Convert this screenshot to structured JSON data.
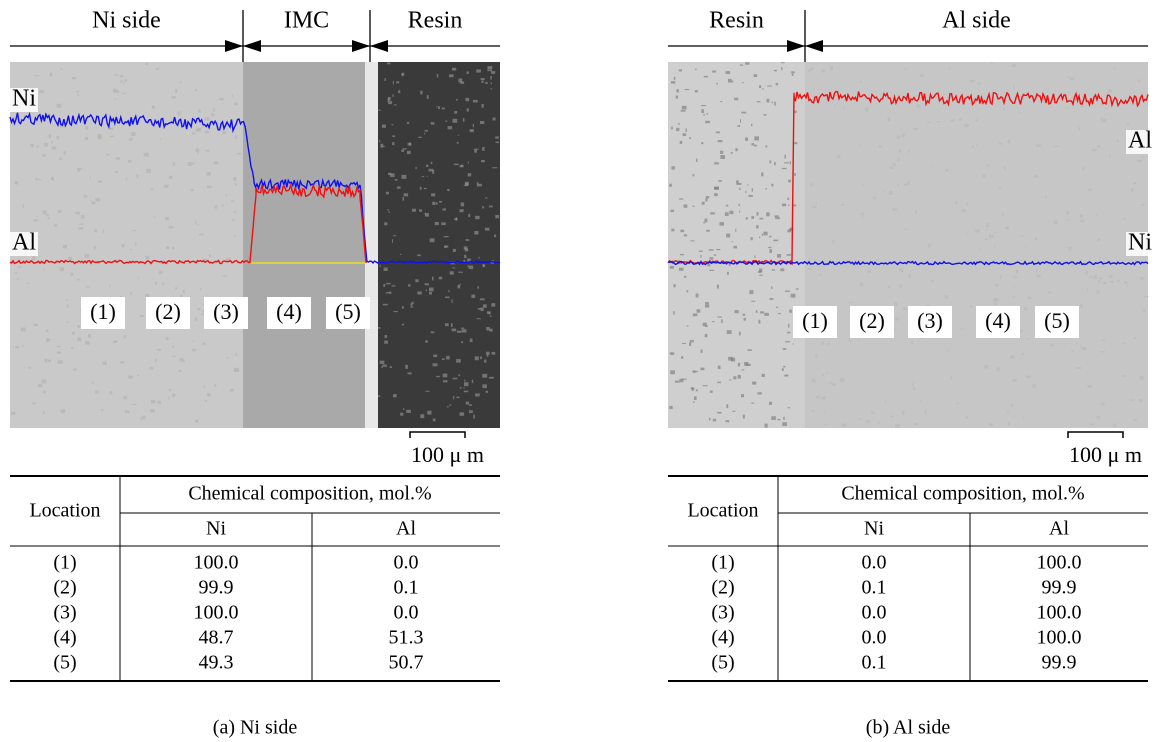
{
  "panels": [
    {
      "regions": [
        "Ni side",
        "IMC",
        "Resin"
      ],
      "trace_labels": [
        "Ni",
        "Al"
      ],
      "locations": [
        "(1)",
        "(2)",
        "(3)",
        "(4)",
        "(5)"
      ],
      "scale_bar": "100 μ m",
      "table": {
        "header": [
          "Location",
          "Chemical composition, mol.%"
        ],
        "subheader": [
          "Ni",
          "Al"
        ],
        "rows": [
          [
            "(1)",
            "100.0",
            "0.0"
          ],
          [
            "(2)",
            "99.9",
            "0.1"
          ],
          [
            "(3)",
            "100.0",
            "0.0"
          ],
          [
            "(4)",
            "48.7",
            "51.3"
          ],
          [
            "(5)",
            "49.3",
            "50.7"
          ]
        ]
      },
      "caption": "(a) Ni side"
    },
    {
      "regions": [
        "Resin",
        "Al side"
      ],
      "trace_labels": [
        "Al",
        "Ni"
      ],
      "locations": [
        "(1)",
        "(2)",
        "(3)",
        "(4)",
        "(5)"
      ],
      "scale_bar": "100 μ m",
      "table": {
        "header": [
          "Location",
          "Chemical composition, mol.%"
        ],
        "subheader": [
          "Ni",
          "Al"
        ],
        "rows": [
          [
            "(1)",
            "0.0",
            "100.0"
          ],
          [
            "(2)",
            "0.1",
            "99.9"
          ],
          [
            "(3)",
            "0.0",
            "100.0"
          ],
          [
            "(4)",
            "0.0",
            "100.0"
          ],
          [
            "(5)",
            "0.1",
            "99.9"
          ]
        ]
      },
      "caption": "(b) Al side"
    }
  ]
}
